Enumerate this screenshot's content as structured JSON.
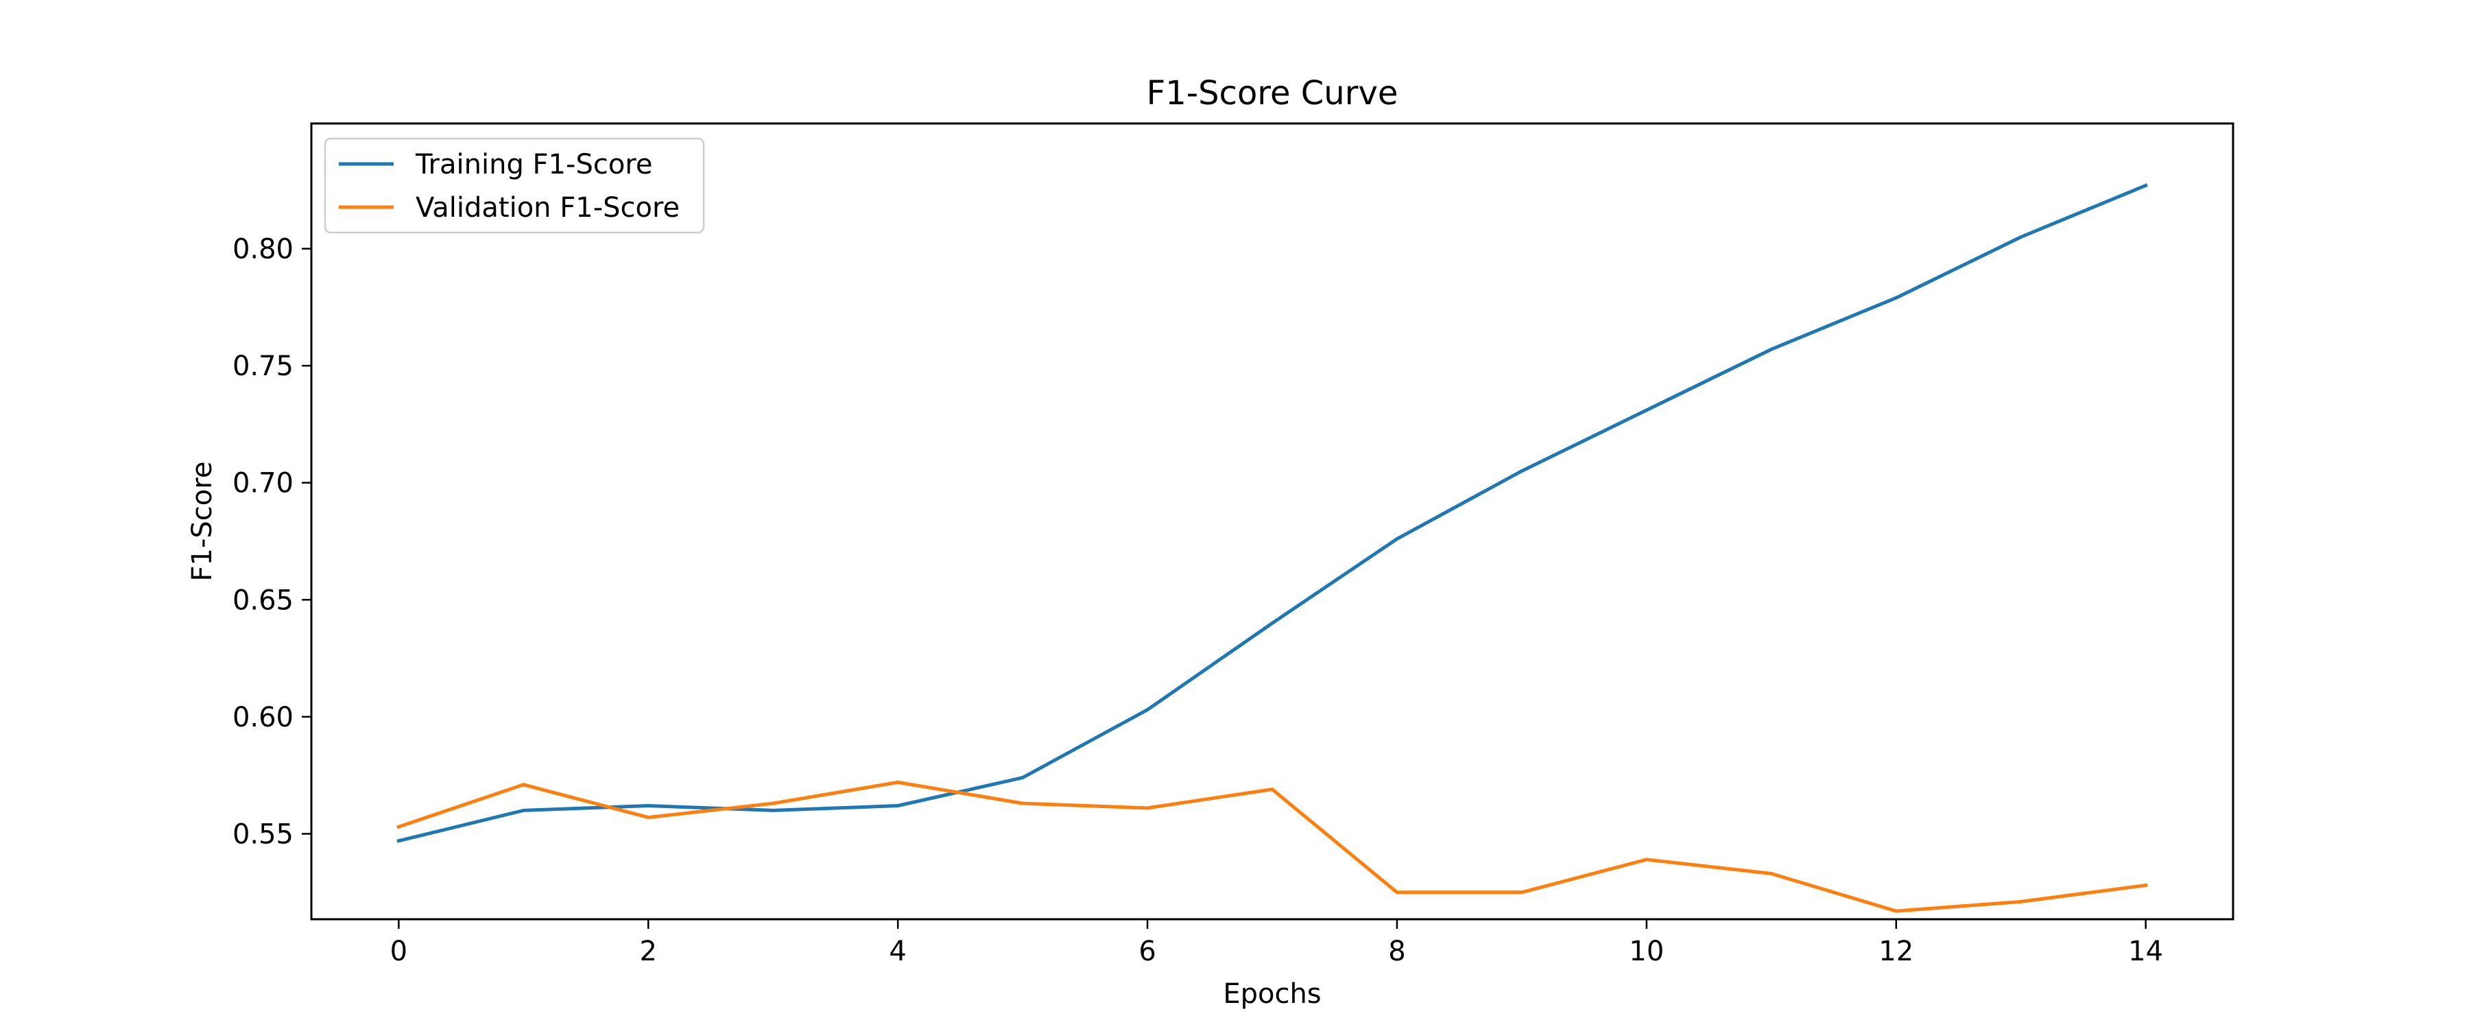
{
  "chart_data": {
    "type": "line",
    "title": "F1-Score Curve",
    "xlabel": "Epochs",
    "ylabel": "F1-Score",
    "x": [
      0,
      1,
      2,
      3,
      4,
      5,
      6,
      7,
      8,
      9,
      10,
      11,
      12,
      13,
      14
    ],
    "xlim": [
      -0.7,
      14.7
    ],
    "ylim": [
      0.5135,
      0.8535
    ],
    "x_ticks": [
      0,
      2,
      4,
      6,
      8,
      10,
      12,
      14
    ],
    "x_tick_labels": [
      "0",
      "2",
      "4",
      "6",
      "8",
      "10",
      "12",
      "14"
    ],
    "y_ticks": [
      0.55,
      0.6,
      0.65,
      0.7,
      0.75,
      0.8
    ],
    "y_tick_labels": [
      "0.55",
      "0.60",
      "0.65",
      "0.70",
      "0.75",
      "0.80"
    ],
    "grid": false,
    "legend_position": "top-left",
    "series": [
      {
        "name": "Training F1-Score",
        "color": "#1f77b4",
        "values": [
          0.547,
          0.56,
          0.562,
          0.56,
          0.562,
          0.574,
          0.603,
          0.64,
          0.676,
          0.705,
          0.731,
          0.757,
          0.779,
          0.805,
          0.827
        ]
      },
      {
        "name": "Validation F1-Score",
        "color": "#ff7f0e",
        "values": [
          0.553,
          0.571,
          0.557,
          0.563,
          0.572,
          0.563,
          0.561,
          0.569,
          0.525,
          0.525,
          0.539,
          0.533,
          0.517,
          0.521,
          0.528
        ]
      }
    ]
  }
}
